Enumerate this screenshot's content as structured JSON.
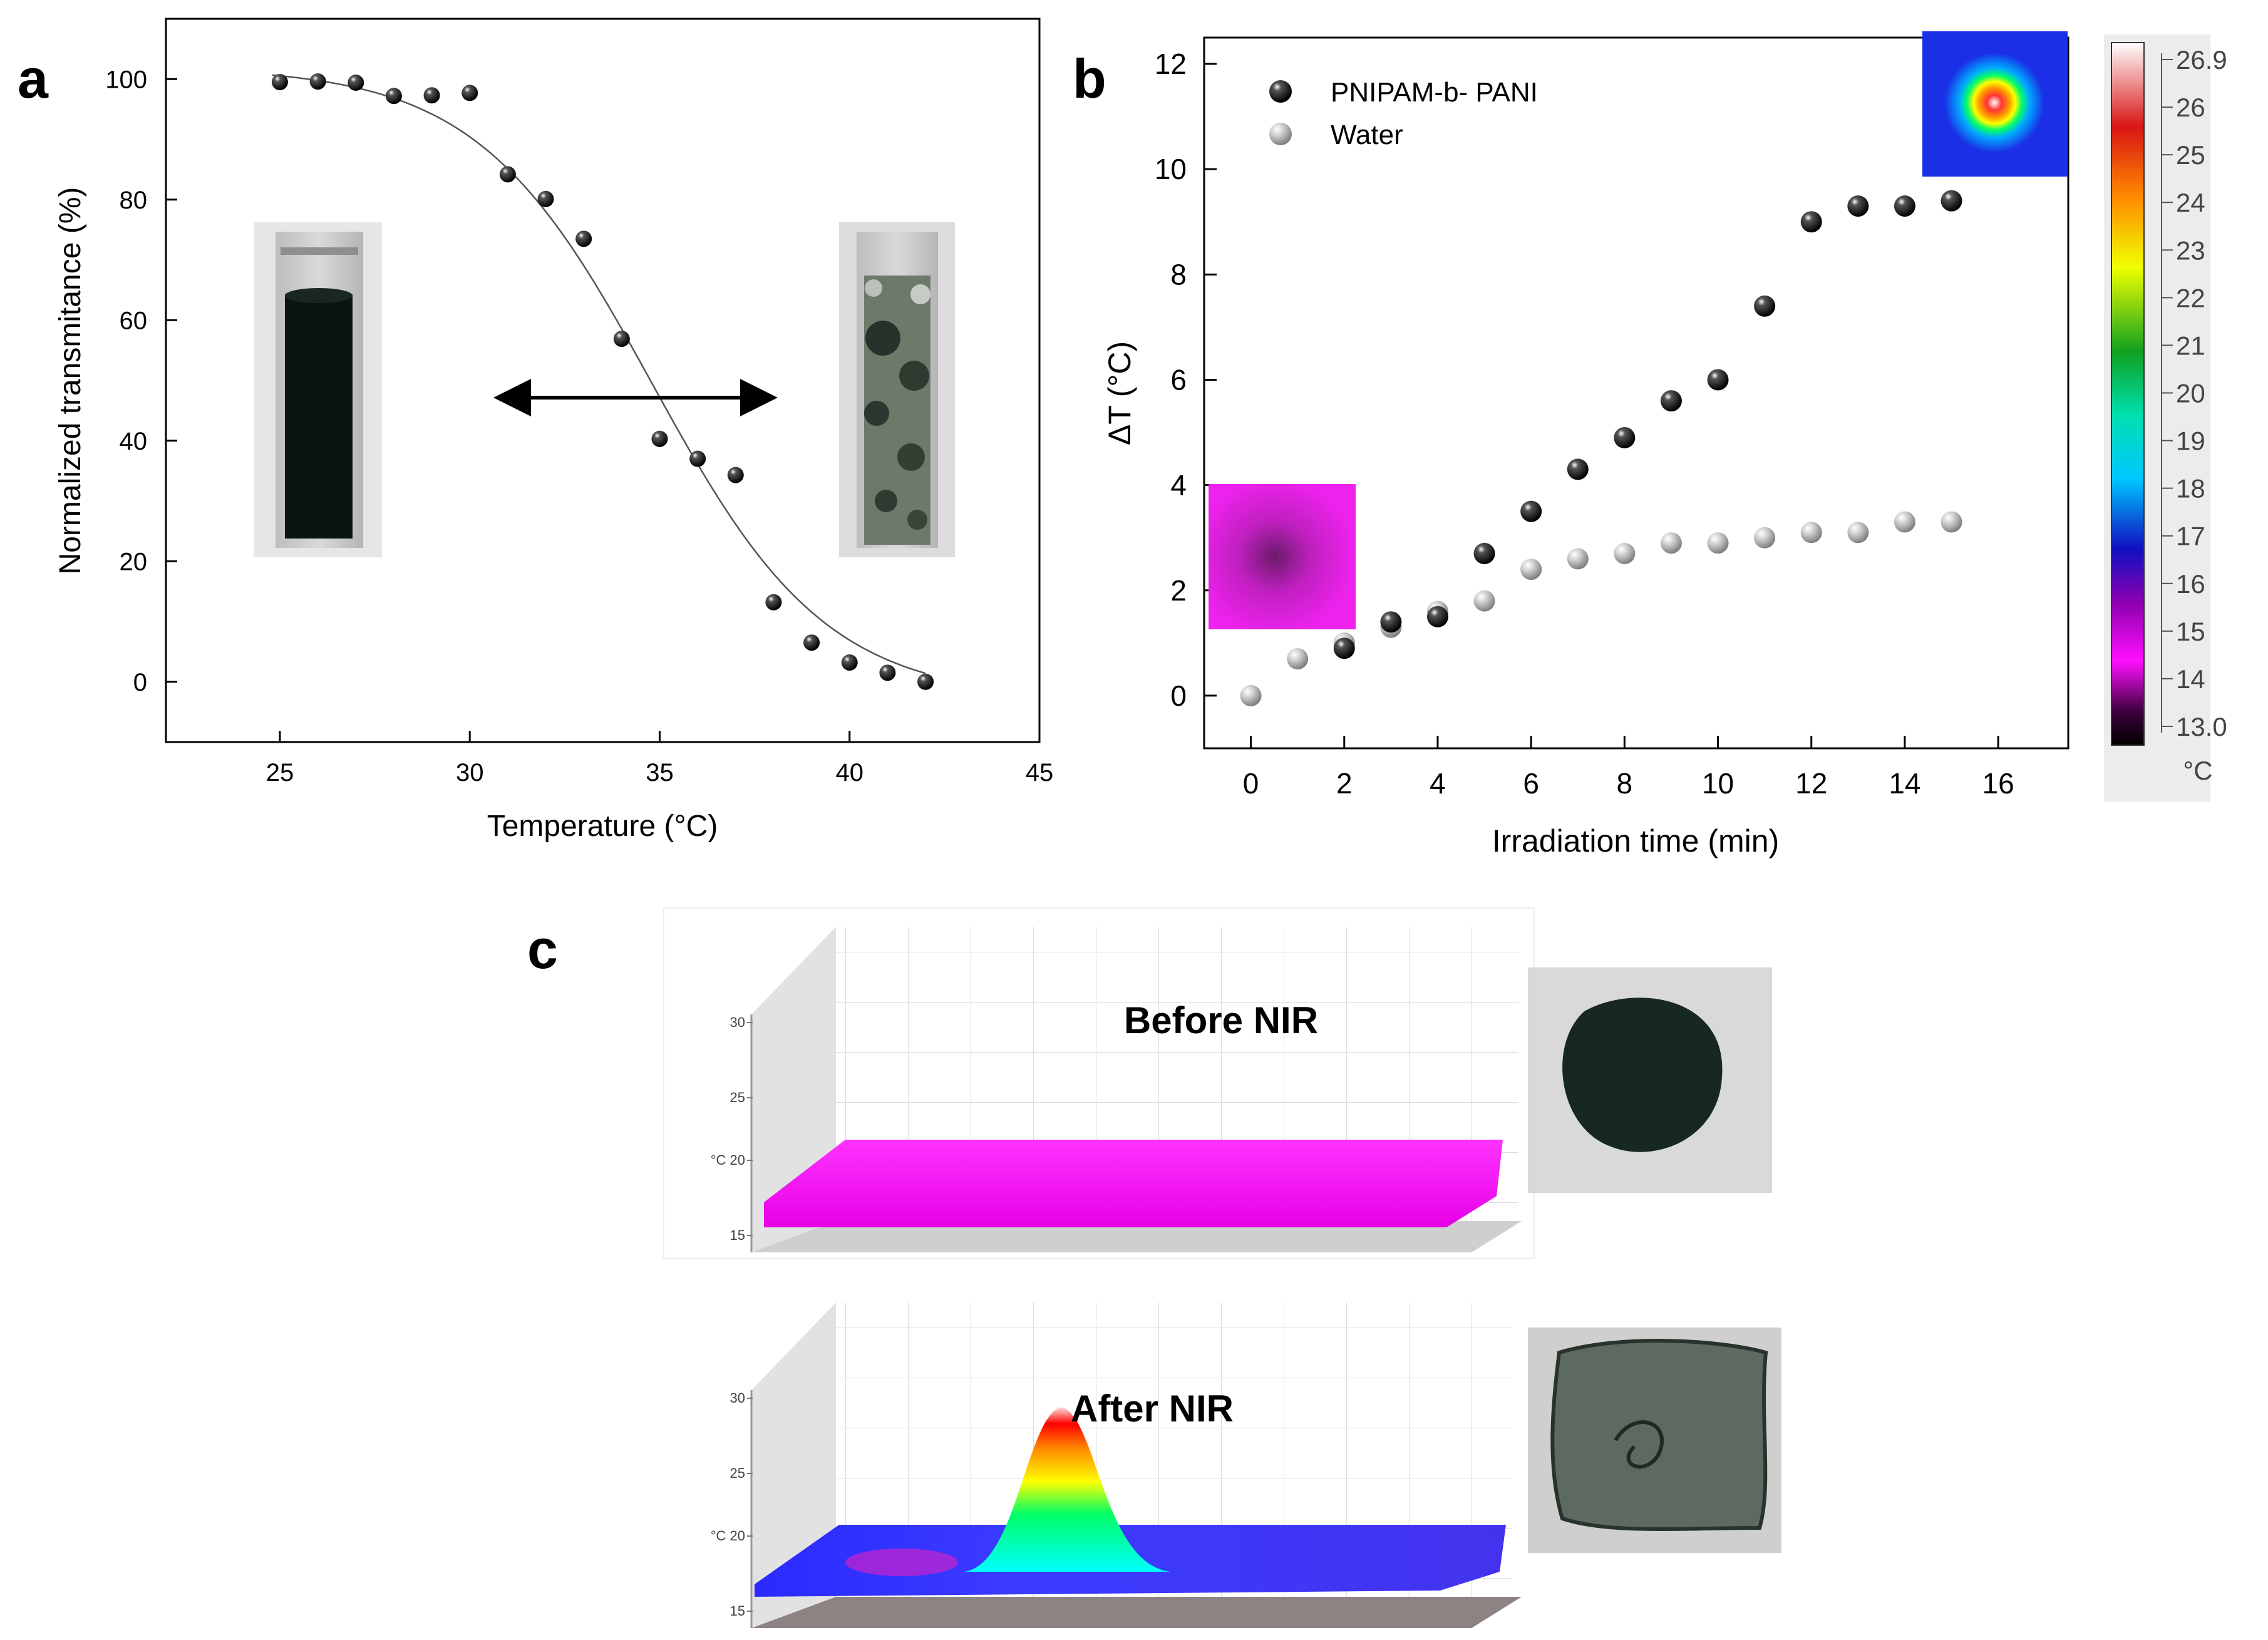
{
  "panels": {
    "a": "a",
    "b": "b",
    "c": "c"
  },
  "chart_data": [
    {
      "id": "a",
      "type": "scatter",
      "title": "",
      "xlabel": "Temperature (°C)",
      "ylabel": "Normalized transmitance (%)",
      "xlim": [
        22,
        45
      ],
      "ylim": [
        -10,
        110
      ],
      "xticks": [
        25,
        30,
        35,
        40,
        45
      ],
      "yticks": [
        0,
        20,
        40,
        60,
        80,
        100
      ],
      "series": [
        {
          "name": "data",
          "x": [
            25,
            26,
            27,
            28,
            29,
            30,
            31,
            32,
            33,
            34,
            35,
            36,
            37,
            38,
            39,
            40,
            41,
            42
          ],
          "y": [
            99.5,
            99.6,
            99.4,
            97.2,
            97.3,
            97.7,
            84.2,
            80.1,
            73.5,
            56.9,
            40.3,
            37.0,
            34.3,
            13.2,
            6.5,
            3.2,
            1.5,
            0.0
          ]
        },
        {
          "name": "sigmoid fit",
          "kind": "line",
          "model": "boltzmann",
          "params": {
            "A1": 102,
            "A2": -3,
            "x0": 34.8,
            "dx": 2.3
          }
        }
      ],
      "annotations": {
        "arrow": "double-headed horizontal arrow between cuvette photos"
      }
    },
    {
      "id": "b",
      "type": "scatter",
      "title": "",
      "xlabel": "Irradiation time (min)",
      "ylabel": "ΔT (°C)",
      "xlim": [
        -1,
        17.5
      ],
      "ylim": [
        -1,
        12.5
      ],
      "xticks": [
        0,
        2,
        4,
        6,
        8,
        10,
        12,
        14,
        16
      ],
      "yticks": [
        0,
        2,
        4,
        6,
        8,
        10,
        12
      ],
      "legend_position": "top-left",
      "series": [
        {
          "name": "PNIPAM-b- PANI",
          "color": "#111111",
          "x": [
            2,
            3,
            4,
            5,
            6,
            7,
            8,
            9,
            10,
            11,
            12,
            13,
            14,
            15
          ],
          "y": [
            0.9,
            1.4,
            1.5,
            2.7,
            3.5,
            4.3,
            4.9,
            5.6,
            6.0,
            7.4,
            9.0,
            9.3,
            9.3,
            9.4
          ]
        },
        {
          "name": "Water",
          "color": "#9a9a9a",
          "x": [
            0,
            1,
            2,
            3,
            4,
            5,
            6,
            7,
            8,
            9,
            10,
            11,
            12,
            13,
            14,
            15
          ],
          "y": [
            0.0,
            0.7,
            1.0,
            1.3,
            1.6,
            1.8,
            2.4,
            2.6,
            2.7,
            2.9,
            2.9,
            3.0,
            3.1,
            3.1,
            3.3,
            3.3
          ]
        }
      ],
      "colorbar": {
        "ticks": [
          "26.9",
          "26",
          "25",
          "24",
          "23",
          "22",
          "21",
          "20",
          "19",
          "18",
          "17",
          "16",
          "15",
          "14",
          "13.0"
        ],
        "unit": "°C"
      }
    },
    {
      "id": "c",
      "type": "surface",
      "plots": [
        {
          "label": "Before NIR",
          "zticks": [
            "30",
            "25",
            "°C 20",
            "15"
          ],
          "colors": [
            "#ff22ff",
            "#e600e6"
          ]
        },
        {
          "label": "After NIR",
          "zticks": [
            "30",
            "25",
            "°C 20",
            "15"
          ],
          "colors": [
            "#3333ff",
            "#00ffff",
            "#00ff00",
            "#ffff00",
            "#ff8800",
            "#ff0000"
          ]
        }
      ]
    }
  ]
}
